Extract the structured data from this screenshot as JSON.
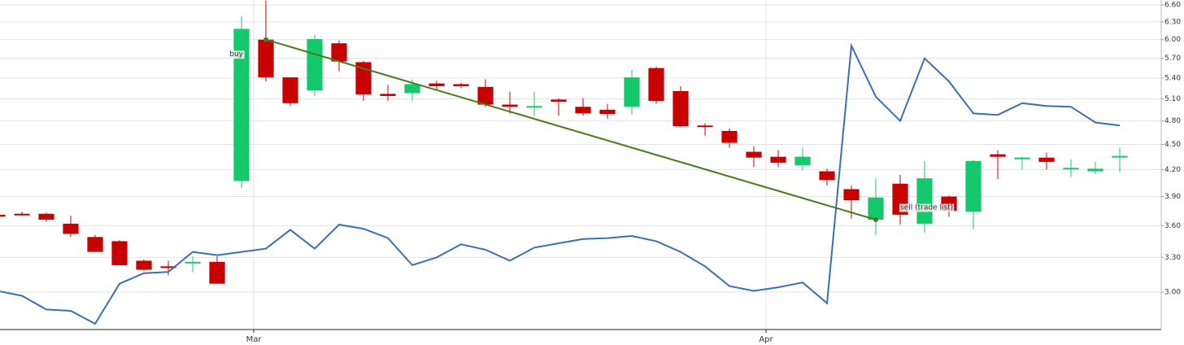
{
  "chart_data": {
    "type": "candlestick",
    "x": [
      0,
      1,
      2,
      3,
      4,
      5,
      6,
      7,
      8,
      9,
      10,
      11,
      12,
      13,
      14,
      15,
      16,
      17,
      18,
      19,
      20,
      21,
      22,
      23,
      24,
      25,
      26,
      27,
      28,
      29,
      30,
      31,
      32,
      33,
      34,
      35,
      36,
      37,
      38,
      39,
      40,
      41,
      42,
      43,
      44,
      45,
      46
    ],
    "open": [
      3.71,
      3.72,
      3.72,
      3.62,
      3.49,
      3.45,
      3.27,
      3.22,
      3.25,
      3.26,
      4.07,
      6.0,
      5.41,
      5.22,
      5.94,
      5.64,
      5.17,
      5.18,
      5.32,
      5.31,
      5.27,
      5.02,
      4.98,
      5.09,
      4.99,
      4.95,
      4.99,
      5.55,
      5.21,
      4.74,
      4.67,
      4.41,
      4.35,
      4.25,
      4.18,
      3.98,
      3.66,
      4.04,
      3.62,
      3.9,
      3.74,
      4.38,
      4.32,
      4.34,
      4.21,
      4.18,
      4.35
    ],
    "high": [
      3.72,
      3.74,
      3.73,
      3.7,
      3.51,
      3.46,
      3.28,
      3.27,
      3.31,
      3.31,
      6.4,
      6.68,
      5.41,
      6.08,
      5.99,
      5.66,
      5.3,
      5.38,
      5.36,
      5.33,
      5.38,
      5.2,
      5.2,
      5.11,
      5.11,
      5.03,
      5.52,
      5.57,
      5.28,
      4.77,
      4.7,
      4.48,
      4.43,
      4.46,
      4.21,
      4.02,
      4.1,
      4.14,
      4.3,
      3.91,
      4.31,
      4.43,
      4.35,
      4.4,
      4.32,
      4.29,
      4.46
    ],
    "low": [
      3.69,
      3.7,
      3.64,
      3.49,
      3.35,
      3.23,
      3.18,
      3.14,
      3.17,
      3.07,
      3.99,
      5.35,
      5.0,
      5.14,
      5.5,
      5.07,
      5.07,
      5.07,
      5.23,
      5.25,
      4.99,
      4.9,
      4.87,
      4.87,
      4.87,
      4.83,
      4.89,
      5.03,
      4.72,
      4.61,
      4.46,
      4.23,
      4.23,
      4.19,
      4.02,
      3.67,
      3.51,
      3.61,
      3.53,
      3.69,
      3.57,
      4.09,
      4.2,
      4.2,
      4.12,
      4.15,
      4.17
    ],
    "close": [
      3.69,
      3.71,
      3.66,
      3.52,
      3.35,
      3.23,
      3.19,
      3.21,
      3.26,
      3.07,
      6.18,
      5.41,
      5.04,
      6.01,
      5.65,
      5.16,
      5.14,
      5.31,
      5.28,
      5.28,
      5.02,
      4.99,
      5.0,
      5.06,
      4.9,
      4.89,
      5.41,
      5.07,
      4.73,
      4.72,
      4.52,
      4.34,
      4.28,
      4.35,
      4.08,
      3.86,
      3.89,
      3.71,
      4.1,
      3.75,
      4.3,
      4.35,
      4.34,
      4.29,
      4.22,
      4.21,
      4.36
    ],
    "up_color": "#14c86c",
    "down_color": "#c80000",
    "overlay": {
      "color": "#3b6fb0",
      "values": [
        3.01,
        2.97,
        2.86,
        2.85,
        2.75,
        3.07,
        3.16,
        3.17,
        3.35,
        3.32,
        3.35,
        3.38,
        3.56,
        3.38,
        3.61,
        3.57,
        3.48,
        3.23,
        3.3,
        3.42,
        3.37,
        3.27,
        3.39,
        3.43,
        3.47,
        3.48,
        3.5,
        3.45,
        3.35,
        3.22,
        3.05,
        3.01,
        3.04,
        3.08,
        2.91,
        5.9,
        5.13,
        4.8,
        5.7,
        5.35,
        4.9,
        4.88,
        5.04,
        5.0,
        4.99,
        4.78,
        4.74
      ]
    },
    "trades": {
      "color": "#4a7a1f",
      "points": [
        {
          "label": "buy",
          "x": 11,
          "value": 6.0
        },
        {
          "label": "sell (trade list)",
          "x": 36,
          "value": 3.66
        }
      ]
    },
    "xlim": [
      0.1,
      47.7
    ],
    "xticks": [
      {
        "value": 10.5,
        "label": "Mar"
      },
      {
        "value": 31.5,
        "label": "Apr"
      }
    ],
    "ylim": [
      2.707,
      6.69
    ],
    "log_scale": true,
    "yticks": [
      {
        "value": 3.0,
        "label": "3.00"
      },
      {
        "value": 3.3,
        "label": "3.30"
      },
      {
        "value": 3.6,
        "label": "3.60"
      },
      {
        "value": 3.9,
        "label": "3.90"
      },
      {
        "value": 4.2,
        "label": "4.20"
      },
      {
        "value": 4.5,
        "label": "4.50"
      },
      {
        "value": 4.8,
        "label": "4.80"
      },
      {
        "value": 5.1,
        "label": "5.10"
      },
      {
        "value": 5.4,
        "label": "5.40"
      },
      {
        "value": 5.7,
        "label": "5.70"
      },
      {
        "value": 6.0,
        "label": "6.00"
      },
      {
        "value": 6.3,
        "label": "6.30"
      },
      {
        "value": 6.6,
        "label": "6.60"
      }
    ],
    "grid": true
  }
}
